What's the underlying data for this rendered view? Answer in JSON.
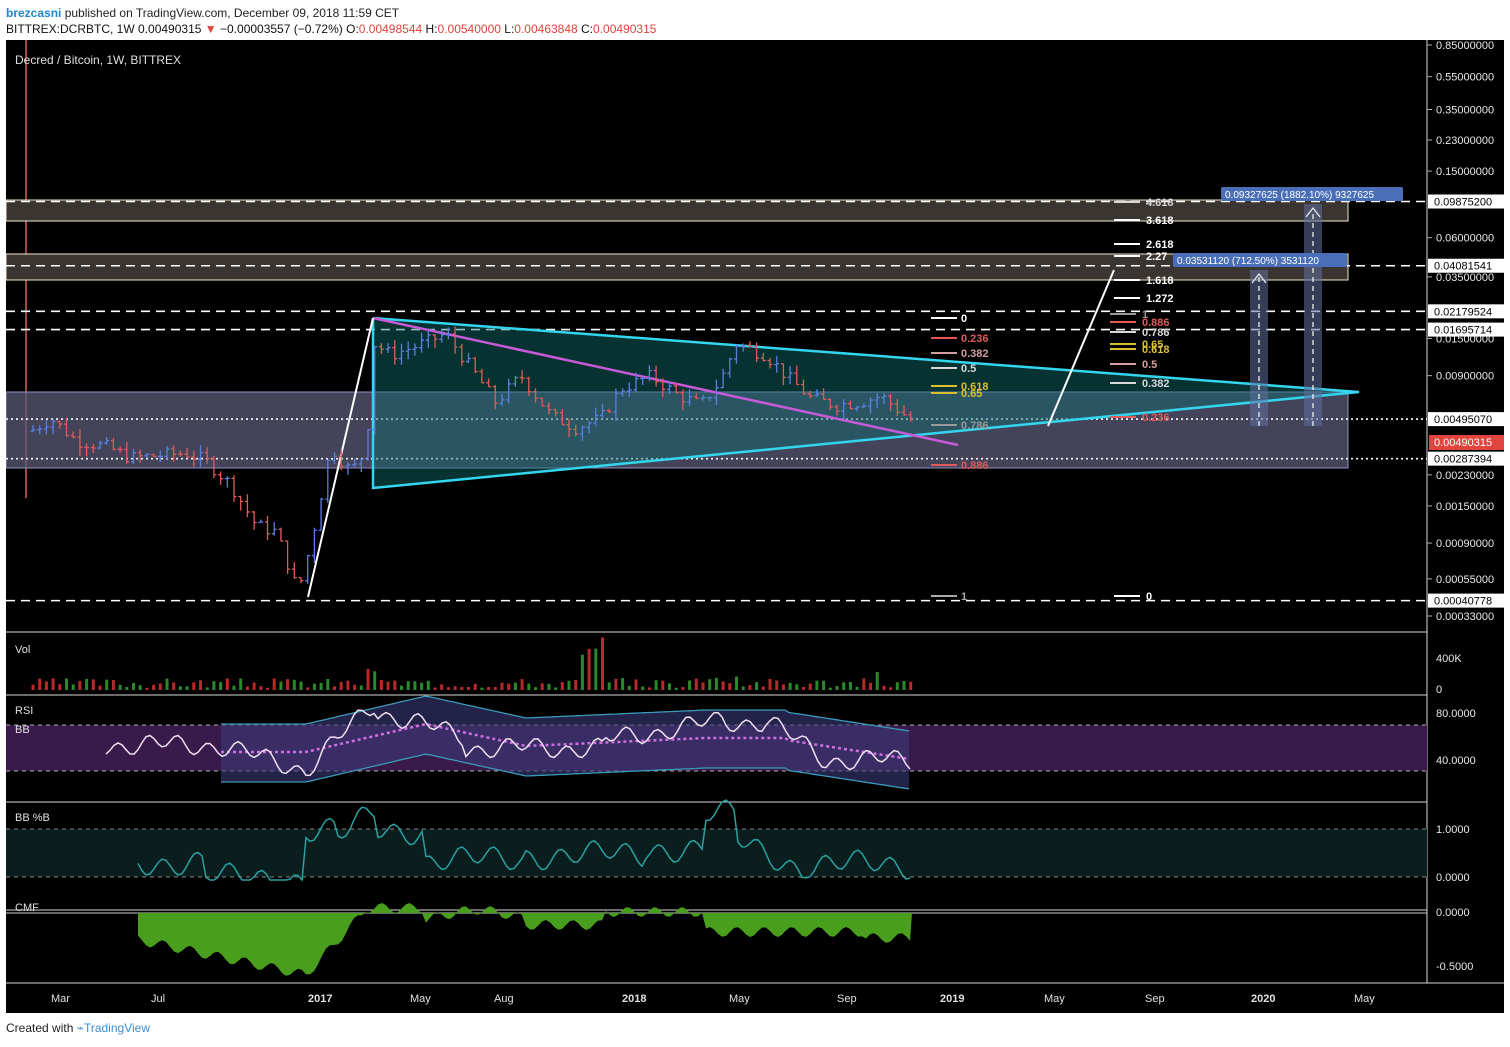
{
  "header": {
    "user": "brezcasni",
    "published_text": "published on TradingView.com, December 09, 2018 11:59 CET",
    "symbol": "BITTREX:DCRBTC, 1W",
    "last": "0.00490315",
    "change": "−0.00003557 (−0.72%)",
    "o_label": "O:",
    "o": "0.00498544",
    "h_label": "H:",
    "h": "0.00540000",
    "l_label": "L:",
    "l": "0.00463848",
    "c_label": "C:",
    "c": "0.00490315"
  },
  "footer": {
    "created_with": "Created with",
    "brand": "TradingView"
  },
  "colors": {
    "background": "#000000",
    "up": "#5b7fe0",
    "down": "#e05a5a",
    "triangle": "#33d6ee",
    "trendline": "#c85ad8",
    "zone_fill": "#5a5a78",
    "resistance_box": "#f0e6c8",
    "rsi_band": "#3a1a4a",
    "cmf_fill": "#4a9e1e",
    "price_badge": "#e0443e",
    "projection": "#4a6fb8"
  },
  "chart_data": {
    "type": "candlestick",
    "title": "Decred / Bitcoin, 1W, BITTREX",
    "scale": "log",
    "ylim": [
      0.0003,
      0.85
    ],
    "x_ticks": [
      "Mar",
      "Jul",
      "2017",
      "May",
      "Aug",
      "2018",
      "May",
      "Sep",
      "2019",
      "May",
      "Sep",
      "2020",
      "May"
    ],
    "y_ticks": [
      "0.85000000",
      "0.55000000",
      "0.35000000",
      "0.23000000",
      "0.15000000",
      "0.06000000",
      "0.03500000",
      "0.01500000",
      "0.00900000",
      "0.00230000",
      "0.00150000",
      "0.00090000",
      "0.00055000",
      "0.00033000"
    ],
    "price_levels": [
      {
        "value": "0.09875200",
        "style": "dashed"
      },
      {
        "value": "0.04081541",
        "style": "dashed"
      },
      {
        "value": "0.02179524",
        "style": "dashed"
      },
      {
        "value": "0.01695714",
        "style": "dashed"
      },
      {
        "value": "0.00495070",
        "style": "dotted"
      },
      {
        "value": "0.00287394",
        "style": "dotted"
      },
      {
        "value": "0.00040778",
        "style": "dashed"
      }
    ],
    "last_price": "0.00490315",
    "projections": [
      {
        "label": "0.09327625 (1882.10%) 9327625"
      },
      {
        "label": "0.03531120 (712.50%) 3531120"
      }
    ],
    "fib_extension": [
      "4.618",
      "3.618",
      "2.618",
      "2.27",
      "1.618",
      "1.272",
      "0"
    ],
    "fib_retracement_a": [
      "0",
      "0.236",
      "0.382",
      "0.5",
      "0.618",
      "0.65",
      "0.786",
      "0.886",
      "1"
    ],
    "fib_retracement_b": [
      "1",
      "0.886",
      "0.786",
      "0.65",
      "0.618",
      "0.5",
      "0.382",
      "0.236"
    ],
    "volume": {
      "label": "Vol",
      "ticks": [
        "400K",
        "0"
      ]
    },
    "rsi": {
      "label": "RSI",
      "sub_label": "BB",
      "ticks": [
        "80.0000",
        "40.0000"
      ]
    },
    "bbpct": {
      "label": "BB %B",
      "ticks": [
        "1.0000",
        "0.0000"
      ]
    },
    "cmf": {
      "label": "CMF",
      "ticks": [
        "0.0000",
        "-0.5000"
      ]
    }
  }
}
